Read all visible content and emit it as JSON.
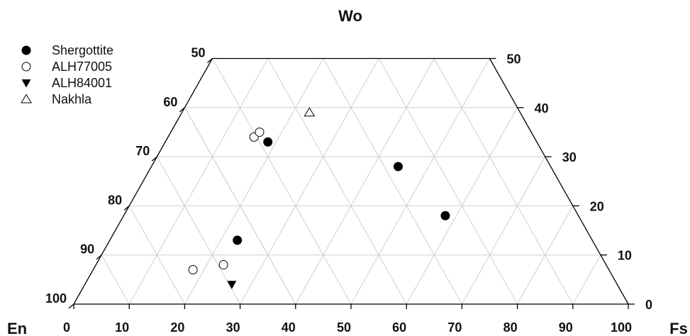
{
  "chart_data": {
    "type": "ternary-scatter",
    "title": "Wo",
    "vertices": {
      "left": "En",
      "right": "Fs",
      "top": "Wo"
    },
    "bottom_axis": {
      "ticks": [
        "0",
        "10",
        "20",
        "30",
        "40",
        "50",
        "60",
        "70",
        "80",
        "90",
        "100"
      ]
    },
    "left_axis": {
      "ticks": [
        "100",
        "90",
        "80",
        "70",
        "60",
        "50"
      ]
    },
    "right_axis": {
      "ticks": [
        "0",
        "10",
        "20",
        "30",
        "40",
        "50"
      ]
    },
    "wo_range": [
      0,
      50
    ],
    "grid": true,
    "legend_position": "top-left",
    "series": [
      {
        "name": "Shergottite",
        "marker": "filled-circle",
        "color": "#000000",
        "points": [
          {
            "fs": 18.5,
            "wo": 33
          },
          {
            "fs": 44.5,
            "wo": 28
          },
          {
            "fs": 58,
            "wo": 18
          },
          {
            "fs": 23,
            "wo": 13
          }
        ]
      },
      {
        "name": "ALH77005",
        "marker": "open-circle",
        "color": "#000000",
        "points": [
          {
            "fs": 15.5,
            "wo": 34
          },
          {
            "fs": 16,
            "wo": 35
          },
          {
            "fs": 23,
            "wo": 8
          },
          {
            "fs": 18,
            "wo": 7
          }
        ]
      },
      {
        "name": "ALH84001",
        "marker": "filled-triangle-down",
        "color": "#000000",
        "points": [
          {
            "fs": 26.5,
            "wo": 4
          }
        ]
      },
      {
        "name": "Nakhla",
        "marker": "open-triangle-up",
        "color": "#000000",
        "points": [
          {
            "fs": 23,
            "wo": 39
          }
        ]
      }
    ]
  }
}
